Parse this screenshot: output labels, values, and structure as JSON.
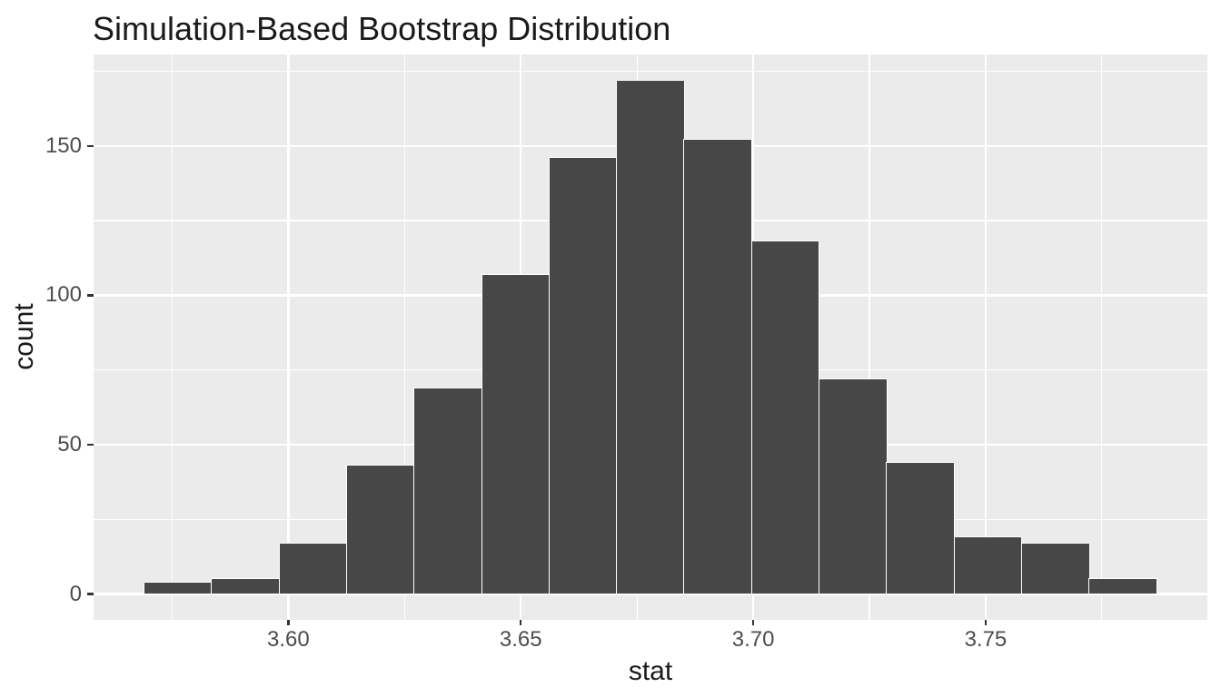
{
  "chart_data": {
    "type": "bar",
    "subtype": "histogram",
    "title": "Simulation-Based Bootstrap Distribution",
    "xlabel": "stat",
    "ylabel": "count",
    "bin_start": 3.569,
    "bin_width": 0.01452,
    "counts": [
      4,
      5,
      17,
      43,
      69,
      107,
      146,
      172,
      152,
      118,
      72,
      44,
      19,
      17,
      5
    ],
    "x_ticks": [
      3.6,
      3.65,
      3.7,
      3.75
    ],
    "x_tick_labels": [
      "3.60",
      "3.65",
      "3.70",
      "3.75"
    ],
    "y_ticks": [
      0,
      50,
      100,
      150
    ],
    "y_tick_labels": [
      "0",
      "50",
      "100",
      "150"
    ],
    "x_minor_gridlines": [
      3.575,
      3.625,
      3.675,
      3.725,
      3.775
    ],
    "y_minor_gridlines": [
      25,
      75,
      125,
      175
    ],
    "xlim": [
      3.5581,
      3.7977
    ],
    "ylim": [
      -8.6,
      180.6
    ],
    "grid": true,
    "legend_position": "none",
    "colors": {
      "bar_fill": "#474747",
      "bar_stroke": "#FFFFFF",
      "panel_background": "#EBEBEB",
      "gridline": "#FFFFFF",
      "tick_mark": "#333333",
      "tick_label": "#4D4D4D",
      "title_text": "#1A1A1A",
      "page_background": "#FFFFFF"
    }
  }
}
